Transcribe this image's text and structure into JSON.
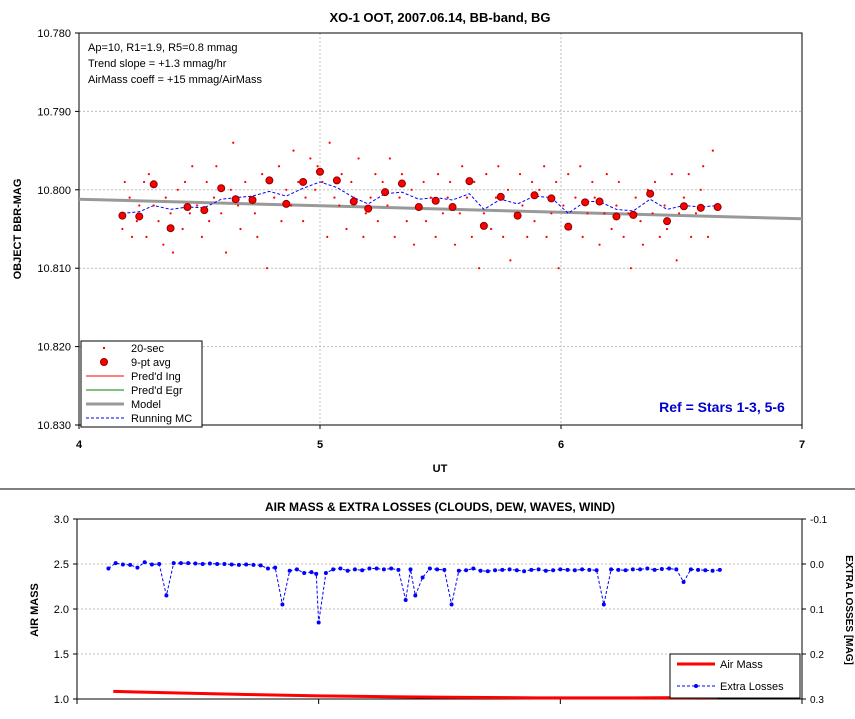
{
  "chart_data": [
    {
      "type": "scatter",
      "title": "XO-1 OOT, 2007.06.14, BB-band, BG",
      "xlabel": "UT",
      "ylabel": "OBJECT BBR-MAG",
      "xlim": [
        4,
        7
      ],
      "ylim": [
        10.78,
        10.83
      ],
      "y_inverted": true,
      "grid": "dashed",
      "x_ticks": [
        "4",
        "5",
        "6",
        "7"
      ],
      "y_ticks": [
        "10.780",
        "10.790",
        "10.800",
        "10.810",
        "10.820",
        "10.830"
      ],
      "annotations": {
        "params": [
          "Ap=10, R1=1.9, R5=0.8 mmag",
          "Trend slope = +1.3 mmag/hr",
          "AirMass coeff = +15 mmag/AirMass"
        ],
        "ref": "Ref = Stars 1-3, 5-6"
      },
      "legend": {
        "position": "bottom-left",
        "entries": [
          "20-sec",
          "9-pt avg",
          "Pred'd Ing",
          "Pred'd Egr",
          "Model",
          "Running MC"
        ]
      },
      "colors": {
        "points": "#ff0000",
        "avg_edge": "#8b0000",
        "ingress": "#ff0000",
        "egress": "#008000",
        "model": "#999999",
        "running_mc": "#0000ff",
        "ref": "#0000cc"
      },
      "series": [
        {
          "name": "20-sec",
          "marker": "dot",
          "x": [
            4.18,
            4.19,
            4.21,
            4.22,
            4.24,
            4.25,
            4.27,
            4.28,
            4.29,
            4.31,
            4.33,
            4.35,
            4.36,
            4.38,
            4.39,
            4.41,
            4.43,
            4.44,
            4.46,
            4.47,
            4.49,
            4.51,
            4.53,
            4.54,
            4.56,
            4.57,
            4.59,
            4.61,
            4.63,
            4.64,
            4.66,
            4.67,
            4.69,
            4.71,
            4.73,
            4.74,
            4.76,
            4.78,
            4.79,
            4.81,
            4.83,
            4.84,
            4.86,
            4.88,
            4.89,
            4.91,
            4.93,
            4.94,
            4.96,
            4.98,
            4.99,
            5.01,
            5.03,
            5.04,
            5.06,
            5.08,
            5.09,
            5.11,
            5.13,
            5.14,
            5.16,
            5.18,
            5.19,
            5.21,
            5.23,
            5.24,
            5.26,
            5.28,
            5.29,
            5.31,
            5.33,
            5.34,
            5.36,
            5.38,
            5.39,
            5.41,
            5.43,
            5.44,
            5.46,
            5.48,
            5.49,
            5.51,
            5.53,
            5.54,
            5.56,
            5.58,
            5.59,
            5.61,
            5.63,
            5.64,
            5.66,
            5.68,
            5.69,
            5.71,
            5.73,
            5.74,
            5.76,
            5.78,
            5.79,
            5.81,
            5.83,
            5.84,
            5.86,
            5.88,
            5.89,
            5.91,
            5.93,
            5.94,
            5.96,
            5.98,
            5.99,
            6.01,
            6.03,
            6.04,
            6.06,
            6.08,
            6.09,
            6.11,
            6.13,
            6.14,
            6.16,
            6.18,
            6.19,
            6.21,
            6.23,
            6.24,
            6.26,
            6.28,
            6.29,
            6.31,
            6.33,
            6.34,
            6.36,
            6.38,
            6.39,
            6.41,
            6.43,
            6.44,
            6.46,
            6.48,
            6.49,
            6.51,
            6.53,
            6.54,
            6.56,
            6.58,
            6.59,
            6.61,
            6.63,
            6.64
          ],
          "y": [
            10.805,
            10.799,
            10.801,
            10.806,
            10.804,
            10.802,
            10.799,
            10.806,
            10.798,
            10.802,
            10.804,
            10.807,
            10.801,
            10.803,
            10.808,
            10.8,
            10.805,
            10.799,
            10.803,
            10.797,
            10.802,
            10.806,
            10.799,
            10.804,
            10.801,
            10.797,
            10.803,
            10.808,
            10.8,
            10.794,
            10.802,
            10.805,
            10.799,
            10.801,
            10.803,
            10.806,
            10.798,
            10.81,
            10.799,
            10.801,
            10.797,
            10.804,
            10.8,
            10.802,
            10.795,
            10.799,
            10.804,
            10.801,
            10.796,
            10.8,
            10.797,
            10.799,
            10.806,
            10.794,
            10.801,
            10.802,
            10.798,
            10.805,
            10.799,
            10.801,
            10.796,
            10.806,
            10.803,
            10.801,
            10.798,
            10.804,
            10.799,
            10.802,
            10.796,
            10.806,
            10.801,
            10.798,
            10.804,
            10.8,
            10.807,
            10.802,
            10.799,
            10.804,
            10.801,
            10.806,
            10.798,
            10.803,
            10.801,
            10.799,
            10.807,
            10.803,
            10.797,
            10.801,
            10.806,
            10.799,
            10.81,
            10.803,
            10.798,
            10.805,
            10.801,
            10.797,
            10.806,
            10.8,
            10.809,
            10.803,
            10.798,
            10.802,
            10.806,
            10.799,
            10.804,
            10.8,
            10.797,
            10.806,
            10.803,
            10.799,
            10.81,
            10.802,
            10.798,
            10.805,
            10.801,
            10.797,
            10.806,
            10.803,
            10.799,
            10.801,
            10.807,
            10.803,
            10.798,
            10.805,
            10.802,
            10.799,
            10.806,
            10.803,
            10.81,
            10.801,
            10.804,
            10.807,
            10.8,
            10.803,
            10.799,
            10.806,
            10.802,
            10.805,
            10.798,
            10.809,
            10.803,
            10.801,
            10.798,
            10.806,
            10.803,
            10.8,
            10.797,
            10.806,
            10.795,
            10.802
          ]
        },
        {
          "name": "9-pt avg",
          "marker": "circle",
          "x": [
            4.18,
            4.25,
            4.31,
            4.38,
            4.45,
            4.52,
            4.59,
            4.65,
            4.72,
            4.79,
            4.86,
            4.93,
            5.0,
            5.07,
            5.14,
            5.2,
            5.27,
            5.34,
            5.41,
            5.48,
            5.55,
            5.62,
            5.68,
            5.75,
            5.82,
            5.89,
            5.96,
            6.03,
            6.1,
            6.16,
            6.23,
            6.3,
            6.37,
            6.44,
            6.51,
            6.58,
            6.65
          ],
          "y": [
            10.8033,
            10.8034,
            10.7993,
            10.8049,
            10.8022,
            10.8026,
            10.7998,
            10.8012,
            10.8013,
            10.7988,
            10.8018,
            10.799,
            10.7977,
            10.7988,
            10.8015,
            10.8024,
            10.8003,
            10.7992,
            10.8022,
            10.8014,
            10.8022,
            10.7989,
            10.8046,
            10.8009,
            10.8033,
            10.8007,
            10.8011,
            10.8047,
            10.8016,
            10.8015,
            10.8034,
            10.8032,
            10.8005,
            10.804,
            10.8021,
            10.8023,
            10.8022
          ]
        },
        {
          "name": "Model",
          "marker": "line",
          "x": [
            4.0,
            7.0
          ],
          "y": [
            10.8012,
            10.8037
          ]
        },
        {
          "name": "Running MC",
          "marker": "dashed",
          "x": [
            4.18,
            4.25,
            4.31,
            4.38,
            4.45,
            4.52,
            4.59,
            4.65,
            4.72,
            4.79,
            4.86,
            4.93,
            5.0,
            5.07,
            5.14,
            5.2,
            5.27,
            5.34,
            5.41,
            5.48,
            5.55,
            5.62,
            5.68,
            5.75,
            5.82,
            5.89,
            5.96,
            6.03,
            6.1,
            6.16,
            6.23,
            6.3,
            6.37,
            6.44,
            6.51,
            6.58,
            6.65
          ],
          "y": [
            10.803,
            10.8028,
            10.802,
            10.8025,
            10.8022,
            10.8023,
            10.8012,
            10.801,
            10.8008,
            10.8002,
            10.8008,
            10.7998,
            10.799,
            10.7997,
            10.801,
            10.8018,
            10.8005,
            10.8003,
            10.8012,
            10.801,
            10.8013,
            10.8005,
            10.8025,
            10.8012,
            10.8018,
            10.8008,
            10.801,
            10.803,
            10.8015,
            10.8015,
            10.8025,
            10.8027,
            10.8012,
            10.8025,
            10.802,
            10.8022,
            10.802
          ]
        }
      ]
    },
    {
      "type": "line",
      "title": "AIR MASS & EXTRA LOSSES (CLOUDS, DEW, WAVES, WIND)",
      "ylabel": "AIR MASS",
      "y2label": "EXTRA LOSSES [MAG]",
      "xlim": [
        4,
        7
      ],
      "ylim": [
        1.0,
        3.0
      ],
      "y2lim": [
        -0.1,
        0.3
      ],
      "y2_inverted": true,
      "y_ticks": [
        "3.0",
        "2.5",
        "2.0",
        "1.5",
        "1.0"
      ],
      "y2_ticks": [
        "-0.1",
        "0.0",
        "0.1",
        "0.2",
        "0.3"
      ],
      "legend": {
        "position": "bottom-right",
        "entries": [
          "Air Mass",
          "Extra Losses"
        ]
      },
      "colors": {
        "air_mass": "#ff0000",
        "extra_losses": "#0000ff"
      },
      "series": [
        {
          "name": "Air Mass",
          "axis": "left",
          "x": [
            4.15,
            4.4,
            4.7,
            5.0,
            5.3,
            5.6,
            5.9,
            6.2,
            6.5,
            6.65
          ],
          "y": [
            1.085,
            1.068,
            1.05,
            1.035,
            1.025,
            1.018,
            1.013,
            1.012,
            1.015,
            1.018
          ]
        },
        {
          "name": "Extra Losses",
          "axis": "right",
          "x": [
            4.13,
            4.16,
            4.19,
            4.22,
            4.25,
            4.28,
            4.31,
            4.34,
            4.37,
            4.4,
            4.43,
            4.46,
            4.49,
            4.52,
            4.55,
            4.58,
            4.61,
            4.64,
            4.67,
            4.7,
            4.73,
            4.76,
            4.79,
            4.82,
            4.85,
            4.88,
            4.91,
            4.94,
            4.97,
            4.99,
            5.0,
            5.03,
            5.06,
            5.09,
            5.12,
            5.15,
            5.18,
            5.21,
            5.24,
            5.27,
            5.3,
            5.33,
            5.36,
            5.38,
            5.4,
            5.43,
            5.46,
            5.49,
            5.52,
            5.55,
            5.58,
            5.61,
            5.64,
            5.67,
            5.7,
            5.73,
            5.76,
            5.79,
            5.82,
            5.85,
            5.88,
            5.91,
            5.94,
            5.97,
            6.0,
            6.03,
            6.06,
            6.09,
            6.12,
            6.15,
            6.18,
            6.21,
            6.24,
            6.27,
            6.3,
            6.33,
            6.36,
            6.39,
            6.42,
            6.45,
            6.48,
            6.51,
            6.54,
            6.57,
            6.6,
            6.63,
            6.66
          ],
          "y": [
            0.01,
            -0.002,
            0.001,
            0.002,
            0.008,
            -0.004,
            0.001,
            0.0,
            0.07,
            -0.002,
            -0.002,
            -0.002,
            -0.001,
            0.0,
            -0.001,
            0.0,
            0.0,
            0.001,
            0.002,
            0.001,
            0.002,
            0.003,
            0.01,
            0.008,
            0.09,
            0.015,
            0.012,
            0.02,
            0.018,
            0.022,
            0.13,
            0.02,
            0.012,
            0.01,
            0.015,
            0.012,
            0.014,
            0.01,
            0.01,
            0.012,
            0.01,
            0.013,
            0.08,
            0.012,
            0.07,
            0.03,
            0.01,
            0.012,
            0.013,
            0.09,
            0.015,
            0.014,
            0.01,
            0.015,
            0.016,
            0.014,
            0.013,
            0.012,
            0.014,
            0.016,
            0.013,
            0.012,
            0.015,
            0.014,
            0.012,
            0.013,
            0.014,
            0.012,
            0.013,
            0.014,
            0.09,
            0.012,
            0.013,
            0.014,
            0.012,
            0.012,
            0.01,
            0.013,
            0.011,
            0.01,
            0.012,
            0.04,
            0.012,
            0.013,
            0.014,
            0.015,
            0.013
          ]
        }
      ]
    }
  ]
}
